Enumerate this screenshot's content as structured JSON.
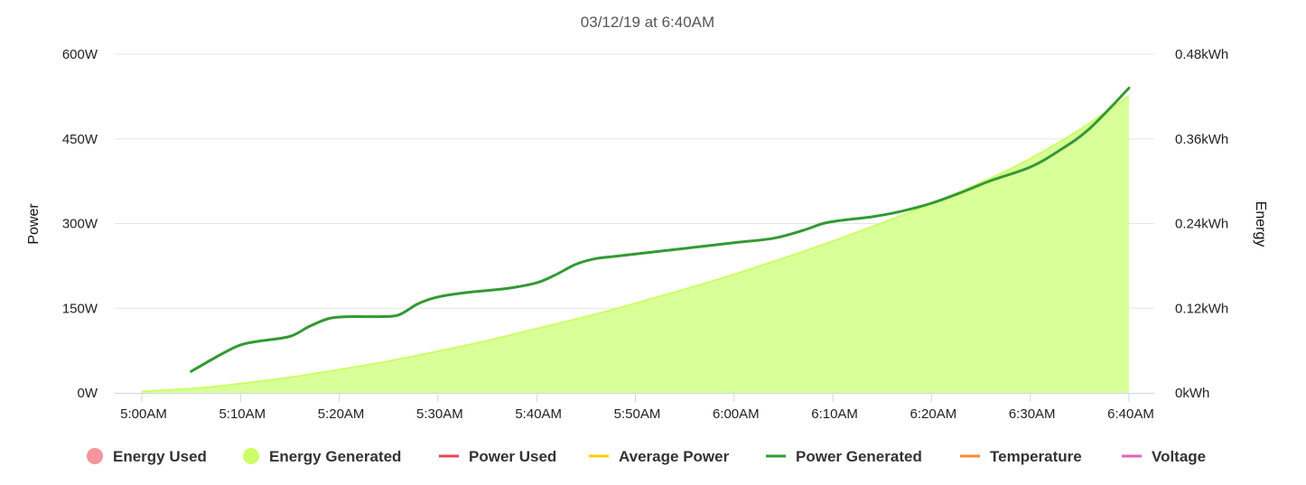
{
  "chart_data": {
    "type": "line",
    "title": "03/12/19 at 6:40AM",
    "x_categories": [
      "5:00AM",
      "5:10AM",
      "5:20AM",
      "5:30AM",
      "5:40AM",
      "5:50AM",
      "6:00AM",
      "6:10AM",
      "6:20AM",
      "6:30AM",
      "6:40AM"
    ],
    "x_range_minutes": [
      0,
      100
    ],
    "y_left": {
      "label": "Power",
      "ylim": [
        0,
        600
      ],
      "ticks": [
        0,
        150,
        300,
        450,
        600
      ],
      "tick_labels": [
        "0W",
        "150W",
        "300W",
        "450W",
        "600W"
      ]
    },
    "y_right": {
      "label": "Energy",
      "ylim": [
        0,
        0.48
      ],
      "ticks": [
        0,
        0.12,
        0.24,
        0.36,
        0.48
      ],
      "tick_labels": [
        "0kWh",
        "0.12kWh",
        "0.24kWh",
        "0.36kWh",
        "0.48kWh"
      ]
    },
    "series": [
      {
        "name": "Energy Generated",
        "type": "area",
        "axis": "right",
        "color": "#ccff66",
        "fill": "#d9ff99",
        "points": [
          [
            0,
            0.002
          ],
          [
            5,
            0.006
          ],
          [
            10,
            0.013
          ],
          [
            15,
            0.022
          ],
          [
            20,
            0.033
          ],
          [
            25,
            0.045
          ],
          [
            30,
            0.059
          ],
          [
            35,
            0.074
          ],
          [
            40,
            0.091
          ],
          [
            45,
            0.108
          ],
          [
            50,
            0.127
          ],
          [
            55,
            0.147
          ],
          [
            60,
            0.168
          ],
          [
            65,
            0.191
          ],
          [
            70,
            0.215
          ],
          [
            75,
            0.241
          ],
          [
            80,
            0.268
          ],
          [
            85,
            0.298
          ],
          [
            90,
            0.332
          ],
          [
            95,
            0.373
          ],
          [
            100,
            0.421
          ]
        ]
      },
      {
        "name": "Power Generated",
        "type": "line",
        "axis": "left",
        "color": "#339933",
        "points": [
          [
            5,
            38
          ],
          [
            8,
            68
          ],
          [
            10,
            85
          ],
          [
            12,
            92
          ],
          [
            15,
            100
          ],
          [
            17,
            118
          ],
          [
            19,
            132
          ],
          [
            21,
            135
          ],
          [
            24,
            135
          ],
          [
            26,
            138
          ],
          [
            28,
            158
          ],
          [
            30,
            170
          ],
          [
            33,
            178
          ],
          [
            37,
            185
          ],
          [
            40,
            195
          ],
          [
            42,
            210
          ],
          [
            44,
            228
          ],
          [
            46,
            238
          ],
          [
            48,
            242
          ],
          [
            52,
            250
          ],
          [
            56,
            258
          ],
          [
            60,
            266
          ],
          [
            64,
            274
          ],
          [
            67,
            288
          ],
          [
            69,
            300
          ],
          [
            71,
            306
          ],
          [
            74,
            312
          ],
          [
            77,
            322
          ],
          [
            80,
            336
          ],
          [
            83,
            355
          ],
          [
            86,
            376
          ],
          [
            90,
            400
          ],
          [
            93,
            430
          ],
          [
            96,
            468
          ],
          [
            100,
            540
          ]
        ]
      }
    ],
    "legend": [
      {
        "label": "Energy Used",
        "symbol": "circle",
        "color": "#f4949c"
      },
      {
        "label": "Energy Generated",
        "symbol": "circle",
        "color": "#ccff66"
      },
      {
        "label": "Power Used",
        "symbol": "line",
        "color": "#ee4455"
      },
      {
        "label": "Average Power",
        "symbol": "line",
        "color": "#ffcc00"
      },
      {
        "label": "Power Generated",
        "symbol": "line",
        "color": "#339933"
      },
      {
        "label": "Temperature",
        "symbol": "line",
        "color": "#ff8833"
      },
      {
        "label": "Voltage",
        "symbol": "line",
        "color": "#dd66bb"
      }
    ],
    "legend_position": "bottom-center",
    "grid": true
  }
}
